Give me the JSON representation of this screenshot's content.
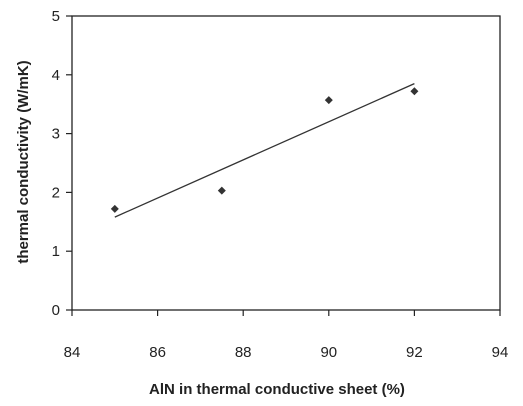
{
  "chart_data": {
    "type": "scatter",
    "title": "",
    "xlabel": "AlN in thermal conductive sheet (%)",
    "ylabel": "thermal conductivity (W/mK)",
    "xlim": [
      84,
      94
    ],
    "ylim": [
      0,
      5
    ],
    "x_ticks": [
      "84",
      "86",
      "88",
      "90",
      "92",
      "94"
    ],
    "y_ticks": [
      "0",
      "1",
      "2",
      "3",
      "4",
      "5"
    ],
    "grid": false,
    "legend": "none",
    "series": [
      {
        "marker": "diamond",
        "x": [
          85,
          87.5,
          90,
          92
        ],
        "y": [
          1.72,
          2.03,
          3.57,
          3.72
        ]
      }
    ],
    "trendline": {
      "type": "linear",
      "x": [
        85,
        92
      ],
      "y": [
        1.58,
        3.85
      ]
    },
    "colors": {
      "marker": "#333333",
      "line": "#333333",
      "axis": "#222222"
    }
  }
}
